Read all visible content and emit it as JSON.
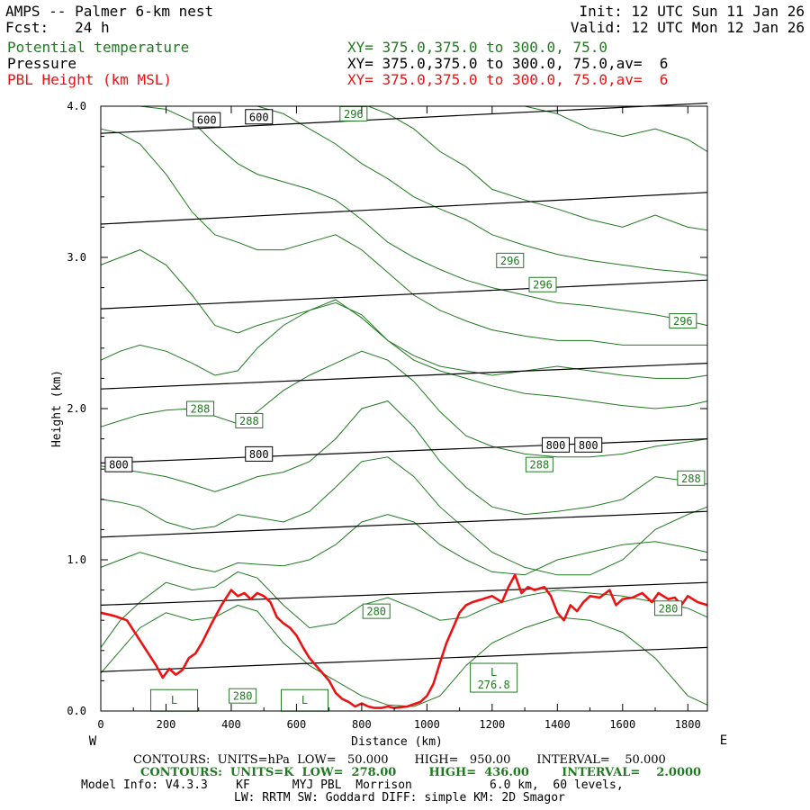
{
  "header": {
    "model": "AMPS -- Palmer 6-km nest",
    "fcst": "Fcst:   24 h",
    "init": "Init: 12 UTC Sun 11 Jan 26",
    "valid": "Valid: 12 UTC Mon 12 Jan 26",
    "fields": [
      {
        "name": "Potential temperature",
        "xy": "XY= 375.0,375.0 to 300.0, 75.0",
        "color": "#1f7a1f"
      },
      {
        "name": "Pressure",
        "xy": "XY= 375.0,375.0 to 300.0, 75.0,av=  6",
        "color": "#000000"
      },
      {
        "name": "PBL Height (km MSL)",
        "xy": "XY= 375.0,375.0 to 300.0, 75.0,av=  6",
        "color": "#ee1111"
      }
    ]
  },
  "footer": {
    "pressure_contours": "CONTOURS:  UNITS=hPa  LOW=   50.000       HIGH=   950.00       INTERVAL=    50.000",
    "theta_contours": "CONTOURS:  UNITS=K  LOW=  278.00        HIGH=  436.00        INTERVAL=    2.0000",
    "model_info": "Model Info: V4.3.3    KF      MYJ PBL  Morrison           6.0 km,  60 levels,",
    "physics": "LW: RRTM SW: Goddard DIFF: simple KM: 2D Smagor"
  },
  "chart_data": {
    "type": "line",
    "title": "AMPS -- Palmer 6-km nest",
    "xlabel": "Distance (km)",
    "ylabel": "Height (km)",
    "xlim": [
      0,
      1860
    ],
    "ylim": [
      0,
      4.0
    ],
    "x_ticks": [
      0,
      200,
      400,
      600,
      800,
      1000,
      1200,
      1400,
      1600,
      1800
    ],
    "y_ticks": [
      0.0,
      1.0,
      2.0,
      3.0,
      4.0
    ],
    "y_tick_labels": [
      "0.0",
      "1.0",
      "2.0",
      "3.0",
      "4.0"
    ],
    "x_end_labels": {
      "left": "W",
      "right": "E"
    },
    "pressure_isobars_hPa": [
      {
        "level": 950,
        "y_west_km": 0.26,
        "y_east_km": 0.42
      },
      {
        "level": 900,
        "y_west_km": 0.7,
        "y_east_km": 0.85
      },
      {
        "level": 850,
        "y_west_km": 1.15,
        "y_east_km": 1.32
      },
      {
        "level": 800,
        "y_west_km": 1.64,
        "y_east_km": 1.8
      },
      {
        "level": 750,
        "y_west_km": 2.13,
        "y_east_km": 2.3
      },
      {
        "level": 700,
        "y_west_km": 2.66,
        "y_east_km": 2.85
      },
      {
        "level": 650,
        "y_west_km": 3.22,
        "y_east_km": 3.43
      },
      {
        "level": 600,
        "y_west_km": 3.82,
        "y_east_km": 4.02
      }
    ],
    "pressure_labels": [
      {
        "text": "600",
        "x_km": 325,
        "y_km": 3.91
      },
      {
        "text": "600",
        "x_km": 485,
        "y_km": 3.93
      },
      {
        "text": "800",
        "x_km": 55,
        "y_km": 1.63
      },
      {
        "text": "800",
        "x_km": 485,
        "y_km": 1.7
      },
      {
        "text": "800",
        "x_km": 1395,
        "y_km": 1.76
      },
      {
        "text": "800",
        "x_km": 1495,
        "y_km": 1.76
      }
    ],
    "theta_labels": [
      {
        "text": "296",
        "x_km": 775,
        "y_km": 3.95
      },
      {
        "text": "296",
        "x_km": 1255,
        "y_km": 2.98
      },
      {
        "text": "296",
        "x_km": 1355,
        "y_km": 2.82
      },
      {
        "text": "296",
        "x_km": 1785,
        "y_km": 2.58
      },
      {
        "text": "288",
        "x_km": 305,
        "y_km": 2.0
      },
      {
        "text": "288",
        "x_km": 455,
        "y_km": 1.92
      },
      {
        "text": "288",
        "x_km": 1345,
        "y_km": 1.63
      },
      {
        "text": "288",
        "x_km": 1810,
        "y_km": 1.54
      },
      {
        "text": "280",
        "x_km": 845,
        "y_km": 0.66
      },
      {
        "text": "280",
        "x_km": 435,
        "y_km": 0.1
      },
      {
        "text": "280",
        "x_km": 1740,
        "y_km": 0.68
      }
    ],
    "theta_lows": [
      {
        "text": "L",
        "value": "",
        "x_km": 225,
        "y_km": 0.07
      },
      {
        "text": "L",
        "value": "",
        "x_km": 625,
        "y_km": 0.07
      },
      {
        "text": "L",
        "value": "276.8",
        "x_km": 1205,
        "y_km": 0.22
      }
    ],
    "theta_isentropes": [
      {
        "name": "theta-1",
        "x_km": [
          0,
          60,
          120,
          200,
          280,
          350,
          420,
          480,
          560,
          640,
          720,
          800,
          880,
          960,
          1040,
          1120,
          1200,
          1300,
          1400,
          1500,
          1600,
          1700,
          1800,
          1860
        ],
        "y_km": [
          0.25,
          0.4,
          0.55,
          0.65,
          0.6,
          0.62,
          0.7,
          0.66,
          0.45,
          0.3,
          0.2,
          0.1,
          0.04,
          0.03,
          0.1,
          0.3,
          0.45,
          0.55,
          0.62,
          0.6,
          0.52,
          0.35,
          0.1,
          0.04
        ]
      },
      {
        "name": "theta-2",
        "x_km": [
          0,
          60,
          120,
          200,
          280,
          350,
          420,
          480,
          560,
          640,
          720,
          800,
          880,
          960,
          1040,
          1120,
          1200,
          1300,
          1400,
          1500,
          1600,
          1700,
          1800,
          1860
        ],
        "y_km": [
          0.42,
          0.6,
          0.72,
          0.85,
          0.8,
          0.82,
          0.92,
          0.88,
          0.7,
          0.55,
          0.58,
          0.7,
          0.75,
          0.68,
          0.6,
          0.62,
          0.7,
          0.76,
          0.8,
          0.78,
          0.76,
          0.72,
          0.68,
          0.62
        ]
      },
      {
        "name": "theta-3",
        "x_km": [
          0,
          60,
          120,
          200,
          280,
          350,
          420,
          480,
          560,
          640,
          720,
          800,
          880,
          960,
          1040,
          1120,
          1200,
          1300,
          1400,
          1500,
          1600,
          1700,
          1800,
          1860
        ],
        "y_km": [
          0.95,
          1.0,
          1.05,
          1.0,
          0.95,
          0.92,
          0.98,
          0.97,
          0.96,
          1.0,
          1.1,
          1.25,
          1.3,
          1.25,
          1.1,
          1.0,
          0.92,
          0.9,
          1.0,
          1.05,
          1.1,
          1.12,
          1.08,
          1.05
        ]
      },
      {
        "name": "theta-4",
        "x_km": [
          0,
          60,
          120,
          200,
          280,
          350,
          420,
          480,
          560,
          640,
          720,
          800,
          880,
          960,
          1040,
          1120,
          1200,
          1300,
          1400,
          1500,
          1600,
          1700,
          1800,
          1860
        ],
        "y_km": [
          1.4,
          1.38,
          1.35,
          1.25,
          1.2,
          1.22,
          1.3,
          1.28,
          1.25,
          1.32,
          1.48,
          1.65,
          1.68,
          1.55,
          1.35,
          1.2,
          1.05,
          0.95,
          0.9,
          0.9,
          1.0,
          1.2,
          1.3,
          1.35
        ]
      },
      {
        "name": "theta-5",
        "x_km": [
          0,
          60,
          120,
          200,
          280,
          350,
          420,
          480,
          560,
          640,
          720,
          800,
          880,
          960,
          1040,
          1120,
          1200,
          1300,
          1400,
          1500,
          1600,
          1700,
          1800,
          1860
        ],
        "y_km": [
          1.62,
          1.6,
          1.58,
          1.55,
          1.5,
          1.45,
          1.5,
          1.55,
          1.58,
          1.65,
          1.8,
          2.0,
          2.05,
          1.88,
          1.65,
          1.48,
          1.35,
          1.3,
          1.32,
          1.35,
          1.4,
          1.55,
          1.52,
          1.5
        ]
      },
      {
        "name": "theta-6",
        "x_km": [
          0,
          60,
          120,
          200,
          280,
          350,
          420,
          480,
          560,
          640,
          720,
          800,
          880,
          960,
          1040,
          1120,
          1200,
          1300,
          1400,
          1500,
          1600,
          1700,
          1800,
          1860
        ],
        "y_km": [
          1.88,
          1.92,
          1.96,
          1.99,
          2.0,
          1.95,
          1.9,
          1.98,
          2.12,
          2.22,
          2.3,
          2.38,
          2.32,
          2.18,
          1.98,
          1.82,
          1.75,
          1.7,
          1.68,
          1.68,
          1.7,
          1.75,
          1.78,
          1.8
        ]
      },
      {
        "name": "theta-7",
        "x_km": [
          0,
          60,
          120,
          200,
          280,
          350,
          420,
          480,
          560,
          640,
          720,
          800,
          880,
          960,
          1040,
          1120,
          1200,
          1300,
          1400,
          1500,
          1600,
          1700,
          1800,
          1860
        ],
        "y_km": [
          2.32,
          2.38,
          2.42,
          2.38,
          2.3,
          2.22,
          2.25,
          2.4,
          2.55,
          2.65,
          2.7,
          2.62,
          2.45,
          2.32,
          2.25,
          2.2,
          2.15,
          2.1,
          2.08,
          2.05,
          2.02,
          2.0,
          2.02,
          2.05
        ]
      },
      {
        "name": "theta-8",
        "x_km": [
          0,
          60,
          120,
          200,
          280,
          350,
          420,
          480,
          560,
          640,
          720,
          800,
          880,
          960,
          1040,
          1120,
          1200,
          1300,
          1400,
          1500,
          1600,
          1700,
          1800,
          1860
        ],
        "y_km": [
          2.95,
          3.0,
          3.05,
          2.95,
          2.75,
          2.55,
          2.5,
          2.55,
          2.6,
          2.65,
          2.72,
          2.6,
          2.45,
          2.35,
          2.28,
          2.25,
          2.22,
          2.25,
          2.28,
          2.25,
          2.22,
          2.2,
          2.2,
          2.22
        ]
      },
      {
        "name": "theta-9",
        "x_km": [
          0,
          60,
          120,
          200,
          280,
          350,
          420,
          480,
          560,
          640,
          720,
          800,
          880,
          960,
          1040,
          1120,
          1200,
          1300,
          1400,
          1500,
          1600,
          1700,
          1800,
          1860
        ],
        "y_km": [
          3.85,
          3.82,
          3.75,
          3.55,
          3.3,
          3.15,
          3.1,
          3.05,
          3.05,
          3.1,
          3.15,
          3.05,
          2.9,
          2.75,
          2.65,
          2.58,
          2.52,
          2.48,
          2.45,
          2.45,
          2.42,
          2.42,
          2.42,
          2.42
        ]
      },
      {
        "name": "theta-10",
        "x_km": [
          0,
          60,
          120,
          200,
          280,
          350,
          420,
          480,
          560,
          640,
          720,
          800,
          880,
          960,
          1040,
          1120,
          1200,
          1300,
          1400,
          1500,
          1600,
          1700,
          1800,
          1860
        ],
        "y_km": [
          4.0,
          4.0,
          4.0,
          3.98,
          3.9,
          3.75,
          3.62,
          3.55,
          3.5,
          3.45,
          3.38,
          3.25,
          3.1,
          3.0,
          2.92,
          2.85,
          2.8,
          2.75,
          2.7,
          2.68,
          2.65,
          2.62,
          2.58,
          2.55
        ]
      },
      {
        "name": "theta-11",
        "x_km": [
          480,
          560,
          640,
          720,
          800,
          880,
          960,
          1040,
          1120,
          1200,
          1300,
          1400,
          1500,
          1600,
          1700,
          1800,
          1860
        ],
        "y_km": [
          4.0,
          3.95,
          3.85,
          3.75,
          3.62,
          3.52,
          3.4,
          3.32,
          3.25,
          3.15,
          3.08,
          3.02,
          2.98,
          2.95,
          2.92,
          2.9,
          2.88
        ]
      },
      {
        "name": "theta-12",
        "x_km": [
          820,
          880,
          960,
          1040,
          1120,
          1200,
          1300,
          1400,
          1500,
          1600,
          1700,
          1800,
          1860
        ],
        "y_km": [
          4.0,
          3.95,
          3.85,
          3.7,
          3.6,
          3.45,
          3.38,
          3.32,
          3.25,
          3.2,
          3.28,
          3.2,
          3.18
        ]
      },
      {
        "name": "theta-13",
        "x_km": [
          1300,
          1400,
          1500,
          1600,
          1700,
          1800,
          1860
        ],
        "y_km": [
          4.0,
          3.95,
          3.85,
          3.8,
          3.85,
          3.78,
          3.7
        ]
      }
    ],
    "pbl_height": {
      "name": "PBL Height (km MSL)",
      "color": "#ee1111",
      "x_km": [
        0,
        40,
        80,
        110,
        140,
        170,
        190,
        210,
        230,
        250,
        270,
        290,
        310,
        340,
        370,
        400,
        420,
        440,
        460,
        480,
        500,
        520,
        540,
        560,
        580,
        600,
        620,
        640,
        660,
        680,
        700,
        720,
        740,
        760,
        780,
        800,
        820,
        840,
        860,
        880,
        900,
        940,
        980,
        1000,
        1020,
        1040,
        1060,
        1080,
        1100,
        1120,
        1140,
        1170,
        1200,
        1230,
        1250,
        1270,
        1290,
        1310,
        1330,
        1360,
        1380,
        1400,
        1420,
        1440,
        1460,
        1480,
        1500,
        1530,
        1560,
        1580,
        1600,
        1630,
        1660,
        1690,
        1710,
        1740,
        1760,
        1780,
        1800,
        1830,
        1860
      ],
      "y_km": [
        0.65,
        0.63,
        0.6,
        0.5,
        0.4,
        0.3,
        0.22,
        0.28,
        0.24,
        0.27,
        0.35,
        0.38,
        0.45,
        0.58,
        0.7,
        0.8,
        0.76,
        0.78,
        0.74,
        0.78,
        0.76,
        0.72,
        0.62,
        0.58,
        0.55,
        0.5,
        0.42,
        0.35,
        0.3,
        0.25,
        0.2,
        0.12,
        0.08,
        0.06,
        0.03,
        0.05,
        0.03,
        0.02,
        0.02,
        0.03,
        0.02,
        0.03,
        0.06,
        0.1,
        0.18,
        0.32,
        0.45,
        0.55,
        0.65,
        0.7,
        0.72,
        0.74,
        0.76,
        0.72,
        0.82,
        0.9,
        0.78,
        0.82,
        0.8,
        0.82,
        0.76,
        0.65,
        0.6,
        0.7,
        0.66,
        0.72,
        0.76,
        0.75,
        0.8,
        0.7,
        0.74,
        0.75,
        0.78,
        0.72,
        0.78,
        0.74,
        0.75,
        0.7,
        0.76,
        0.72,
        0.7
      ]
    }
  }
}
